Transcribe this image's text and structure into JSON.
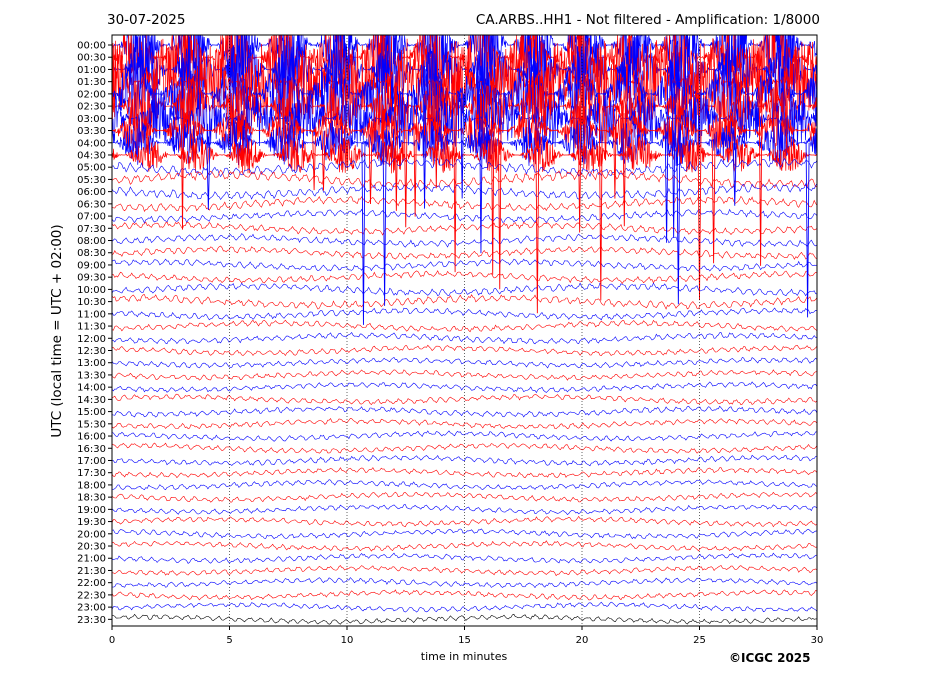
{
  "header": {
    "date": "30-07-2025",
    "title": "CA.ARBS..HH1 - Not filtered - Amplification: 1/8000"
  },
  "footer": {
    "copyright": "©ICGC 2025"
  },
  "chart_data": {
    "type": "line",
    "chart_kind": "helicorder (seismogram drum plot)",
    "title": "CA.ARBS..HH1 - Not filtered - Amplification: 1/8000",
    "xlabel": "time in minutes",
    "ylabel": "UTC (local time = UTC + 02:00)",
    "xlim": [
      0,
      30
    ],
    "xticks": [
      0,
      5,
      10,
      15,
      20,
      25,
      30
    ],
    "grid": "vertical dotted lines at every 5 minutes",
    "trace_colors": {
      "even": "#0000ff",
      "odd": "#ff0000",
      "last_row": "#000000"
    },
    "rows": [
      {
        "label": "00:00",
        "color": "blue",
        "activity": 0.95
      },
      {
        "label": "00:30",
        "color": "red",
        "activity": 0.95
      },
      {
        "label": "01:00",
        "color": "blue",
        "activity": 0.92
      },
      {
        "label": "01:30",
        "color": "red",
        "activity": 0.9
      },
      {
        "label": "02:00",
        "color": "blue",
        "activity": 0.85
      },
      {
        "label": "02:30",
        "color": "red",
        "activity": 0.75
      },
      {
        "label": "03:00",
        "color": "blue",
        "activity": 0.65
      },
      {
        "label": "03:30",
        "color": "red",
        "activity": 0.55
      },
      {
        "label": "04:00",
        "color": "blue",
        "activity": 0.5
      },
      {
        "label": "04:30",
        "color": "red",
        "activity": 0.4
      },
      {
        "label": "05:00",
        "color": "blue",
        "activity": 0.3
      },
      {
        "label": "05:30",
        "color": "red",
        "activity": 0.3
      },
      {
        "label": "06:00",
        "color": "blue",
        "activity": 0.25
      },
      {
        "label": "06:30",
        "color": "red",
        "activity": 0.2
      },
      {
        "label": "07:00",
        "color": "blue",
        "activity": 0.15
      },
      {
        "label": "07:30",
        "color": "red",
        "activity": 0.15
      },
      {
        "label": "08:00",
        "color": "blue",
        "activity": 0.15
      },
      {
        "label": "08:30",
        "color": "red",
        "activity": 0.15
      },
      {
        "label": "09:00",
        "color": "blue",
        "activity": 0.12
      },
      {
        "label": "09:30",
        "color": "red",
        "activity": 0.12
      },
      {
        "label": "10:00",
        "color": "blue",
        "activity": 0.15
      },
      {
        "label": "10:30",
        "color": "red",
        "activity": 0.18
      },
      {
        "label": "11:00",
        "color": "blue",
        "activity": 0.12
      },
      {
        "label": "11:30",
        "color": "red",
        "activity": 0.1
      },
      {
        "label": "12:00",
        "color": "blue",
        "activity": 0.1
      },
      {
        "label": "12:30",
        "color": "red",
        "activity": 0.08
      },
      {
        "label": "13:00",
        "color": "blue",
        "activity": 0.08
      },
      {
        "label": "13:30",
        "color": "red",
        "activity": 0.07
      },
      {
        "label": "14:00",
        "color": "blue",
        "activity": 0.07
      },
      {
        "label": "14:30",
        "color": "red",
        "activity": 0.07
      },
      {
        "label": "15:00",
        "color": "blue",
        "activity": 0.08
      },
      {
        "label": "15:30",
        "color": "red",
        "activity": 0.08
      },
      {
        "label": "16:00",
        "color": "blue",
        "activity": 0.07
      },
      {
        "label": "16:30",
        "color": "red",
        "activity": 0.07
      },
      {
        "label": "17:00",
        "color": "blue",
        "activity": 0.08
      },
      {
        "label": "17:30",
        "color": "red",
        "activity": 0.06
      },
      {
        "label": "18:00",
        "color": "blue",
        "activity": 0.06
      },
      {
        "label": "18:30",
        "color": "red",
        "activity": 0.06
      },
      {
        "label": "19:00",
        "color": "blue",
        "activity": 0.06
      },
      {
        "label": "19:30",
        "color": "red",
        "activity": 0.06
      },
      {
        "label": "20:00",
        "color": "blue",
        "activity": 0.06
      },
      {
        "label": "20:30",
        "color": "red",
        "activity": 0.06
      },
      {
        "label": "21:00",
        "color": "blue",
        "activity": 0.06
      },
      {
        "label": "21:30",
        "color": "red",
        "activity": 0.06
      },
      {
        "label": "22:00",
        "color": "blue",
        "activity": 0.06
      },
      {
        "label": "22:30",
        "color": "red",
        "activity": 0.06
      },
      {
        "label": "23:00",
        "color": "blue",
        "activity": 0.05
      },
      {
        "label": "23:30",
        "color": "red",
        "activity": 0.05
      }
    ],
    "spikes_minutes": [
      2.6,
      3.0,
      4.1,
      5.5,
      8.6,
      9.0,
      10.7,
      11.0,
      11.6,
      12.1,
      12.5,
      12.9,
      13.3,
      13.8,
      14.6,
      14.9,
      15.7,
      16.2,
      16.5,
      16.8,
      18.1,
      18.4,
      19.9,
      20.8,
      21.0,
      21.4,
      21.8,
      23.6,
      23.9,
      24.1,
      25.0,
      25.6,
      26.5,
      27.6,
      28.4,
      29.6
    ]
  }
}
